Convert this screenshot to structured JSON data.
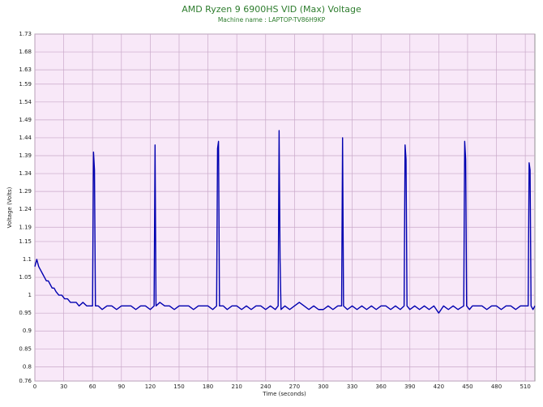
{
  "chart_data": {
    "type": "line",
    "title": "AMD Ryzen 9 6900HS VID (Max) Voltage",
    "subtitle": "Machine name : LAPTOP-TV86H9KP",
    "x_label": "Time (seconds)",
    "y_label": "Voltage (Volts)",
    "xlim": [
      0,
      520
    ],
    "ylim": [
      0.76,
      1.73
    ],
    "xticks": [
      0,
      30,
      60,
      90,
      120,
      150,
      180,
      210,
      240,
      270,
      300,
      330,
      360,
      390,
      420,
      450,
      480,
      510
    ],
    "yticks": [
      0.76,
      0.8,
      0.85,
      0.9,
      0.95,
      1.0,
      1.05,
      1.1,
      1.15,
      1.19,
      1.24,
      1.29,
      1.34,
      1.39,
      1.44,
      1.49,
      1.54,
      1.59,
      1.63,
      1.68,
      1.73
    ],
    "grid": true,
    "x": [
      0,
      2,
      4,
      6,
      8,
      10,
      12,
      14,
      16,
      18,
      20,
      22,
      25,
      28,
      31,
      34,
      37,
      40,
      43,
      46,
      50,
      54,
      58,
      60,
      61,
      62,
      63,
      66,
      70,
      75,
      80,
      85,
      90,
      95,
      100,
      105,
      110,
      115,
      120,
      124,
      125,
      126,
      130,
      135,
      140,
      145,
      150,
      155,
      160,
      165,
      170,
      175,
      180,
      185,
      189,
      190,
      191,
      192,
      196,
      200,
      205,
      210,
      215,
      220,
      225,
      230,
      235,
      240,
      245,
      250,
      253,
      254,
      255,
      256,
      260,
      265,
      270,
      275,
      280,
      285,
      290,
      295,
      300,
      305,
      310,
      315,
      319,
      320,
      321,
      325,
      330,
      335,
      340,
      345,
      350,
      355,
      360,
      365,
      370,
      375,
      380,
      384,
      385,
      386,
      387,
      390,
      395,
      400,
      405,
      410,
      415,
      420,
      425,
      430,
      435,
      440,
      446,
      447,
      448,
      449,
      452,
      455,
      460,
      465,
      470,
      475,
      480,
      485,
      490,
      495,
      500,
      505,
      510,
      513,
      514,
      515,
      516,
      518,
      520
    ],
    "series": [
      {
        "name": "VID (Max)",
        "color": "#0000b0",
        "values": [
          1.08,
          1.1,
          1.08,
          1.07,
          1.06,
          1.05,
          1.04,
          1.04,
          1.03,
          1.02,
          1.02,
          1.01,
          1.0,
          1.0,
          0.99,
          0.99,
          0.98,
          0.98,
          0.98,
          0.97,
          0.98,
          0.97,
          0.97,
          0.97,
          1.4,
          1.35,
          0.97,
          0.97,
          0.96,
          0.97,
          0.97,
          0.96,
          0.97,
          0.97,
          0.97,
          0.96,
          0.97,
          0.97,
          0.96,
          0.97,
          1.42,
          0.97,
          0.98,
          0.97,
          0.97,
          0.96,
          0.97,
          0.97,
          0.97,
          0.96,
          0.97,
          0.97,
          0.97,
          0.96,
          0.97,
          1.41,
          1.43,
          0.97,
          0.97,
          0.96,
          0.97,
          0.97,
          0.96,
          0.97,
          0.96,
          0.97,
          0.97,
          0.96,
          0.97,
          0.96,
          0.97,
          1.46,
          1.1,
          0.96,
          0.97,
          0.96,
          0.97,
          0.98,
          0.97,
          0.96,
          0.97,
          0.96,
          0.96,
          0.97,
          0.96,
          0.97,
          0.97,
          1.44,
          0.97,
          0.96,
          0.97,
          0.96,
          0.97,
          0.96,
          0.97,
          0.96,
          0.97,
          0.97,
          0.96,
          0.97,
          0.96,
          0.97,
          1.42,
          1.38,
          0.97,
          0.96,
          0.97,
          0.96,
          0.97,
          0.96,
          0.97,
          0.95,
          0.97,
          0.96,
          0.97,
          0.96,
          0.97,
          1.43,
          1.38,
          0.97,
          0.96,
          0.97,
          0.97,
          0.97,
          0.96,
          0.97,
          0.97,
          0.96,
          0.97,
          0.97,
          0.96,
          0.97,
          0.97,
          0.97,
          1.37,
          1.35,
          0.97,
          0.96,
          0.97
        ]
      }
    ]
  }
}
